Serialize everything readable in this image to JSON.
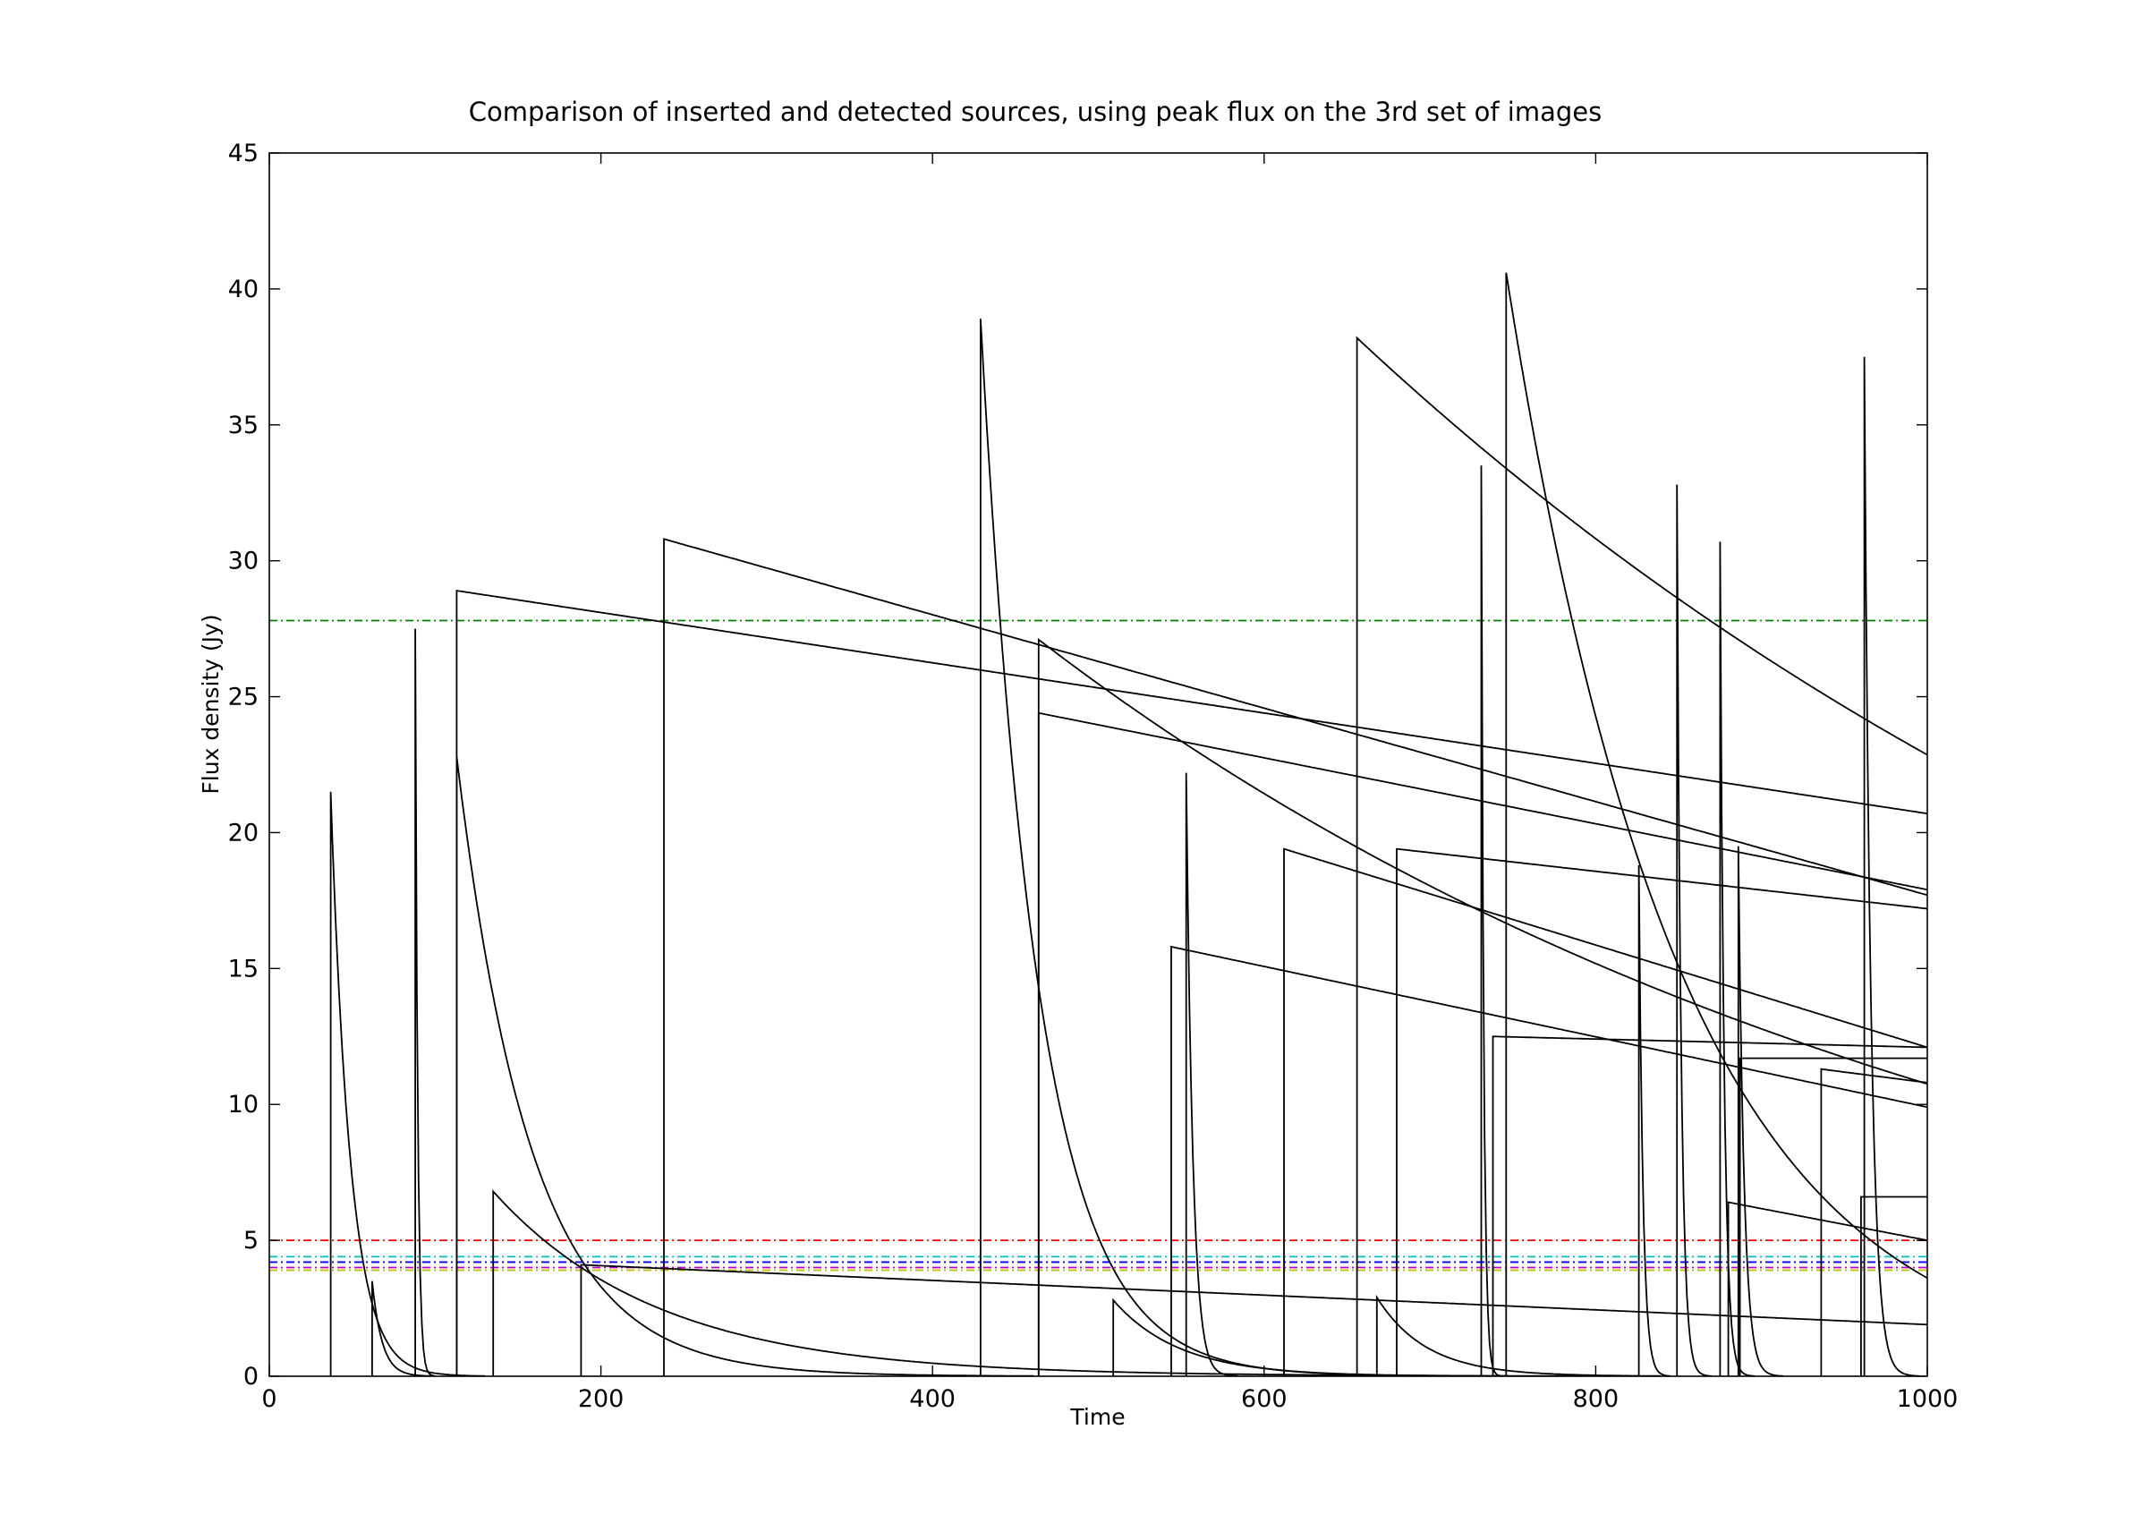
{
  "chart_data": {
    "type": "line",
    "title": "Comparison of inserted and detected sources, using peak flux on the 3rd set of images",
    "xlabel": "Time",
    "ylabel": "Flux density (Jy)",
    "xlim": [
      0,
      1000
    ],
    "ylim": [
      0,
      45
    ],
    "xticks": [
      "0",
      "200",
      "400",
      "600",
      "800",
      "1000"
    ],
    "yticks": [
      "0",
      "5",
      "10",
      "15",
      "20",
      "25",
      "30",
      "35",
      "40",
      "45"
    ],
    "grid": false,
    "legend": "none",
    "colors": {
      "inserted": "#000000",
      "axes": "#000000",
      "background": "#ffffff"
    },
    "inserted_sources": [
      {
        "t0": 37,
        "peak": 21.5,
        "kind": "exp",
        "tau": 12
      },
      {
        "t0": 62,
        "peak": 3.5,
        "kind": "exp",
        "tau": 6
      },
      {
        "t0": 88,
        "peak": 27.5,
        "kind": "exp",
        "tau": 1.5
      },
      {
        "t0": 113,
        "peak": 22.8,
        "kind": "exp",
        "tau": 45
      },
      {
        "t0": 113,
        "peak": 28.9,
        "kind": "linear",
        "end": 20.7
      },
      {
        "t0": 135,
        "peak": 6.8,
        "kind": "exp",
        "tau": 100
      },
      {
        "t0": 188,
        "peak": 4.1,
        "kind": "linear",
        "end": 1.9
      },
      {
        "t0": 238,
        "peak": 30.8,
        "kind": "linear",
        "end": 17.7
      },
      {
        "t0": 429,
        "peak": 38.9,
        "kind": "exp",
        "tau": 35
      },
      {
        "t0": 464,
        "peak": 27.1,
        "kind": "exp",
        "tau": 580
      },
      {
        "t0": 464,
        "peak": 24.4,
        "kind": "linear",
        "end": 17.9
      },
      {
        "t0": 509,
        "peak": 2.8,
        "kind": "exp",
        "tau": 40
      },
      {
        "t0": 544,
        "peak": 15.8,
        "kind": "linear",
        "end": 9.9
      },
      {
        "t0": 553,
        "peak": 22.2,
        "kind": "exp",
        "tau": 4
      },
      {
        "t0": 612,
        "peak": 19.4,
        "kind": "linear",
        "end": 12.1
      },
      {
        "t0": 656,
        "peak": 38.2,
        "kind": "exp",
        "tau": 670
      },
      {
        "t0": 668,
        "peak": 2.9,
        "kind": "exp",
        "tau": 30
      },
      {
        "t0": 680,
        "peak": 19.4,
        "kind": "linear",
        "end": 17.2
      },
      {
        "t0": 731,
        "peak": 33.5,
        "kind": "exp",
        "tau": 1.5
      },
      {
        "t0": 746,
        "peak": 40.6,
        "kind": "exp",
        "tau": 105
      },
      {
        "t0": 738,
        "peak": 12.5,
        "kind": "linear",
        "end": 12.1
      },
      {
        "t0": 826,
        "peak": 18.8,
        "kind": "exp",
        "tau": 2.5
      },
      {
        "t0": 849,
        "peak": 32.8,
        "kind": "exp",
        "tau": 2.5
      },
      {
        "t0": 875,
        "peak": 30.7,
        "kind": "exp",
        "tau": 2.5
      },
      {
        "t0": 880,
        "peak": 6.4,
        "kind": "linear",
        "end": 5.0
      },
      {
        "t0": 886,
        "peak": 19.5,
        "kind": "exp",
        "tau": 3.5
      },
      {
        "t0": 887,
        "peak": 11.7,
        "kind": "linear",
        "end": 11.7
      },
      {
        "t0": 936,
        "peak": 11.3,
        "kind": "linear",
        "end": 10.8
      },
      {
        "t0": 962,
        "peak": 37.5,
        "kind": "exp",
        "tau": 4
      },
      {
        "t0": 960,
        "peak": 6.6,
        "kind": "linear",
        "end": 6.6
      }
    ],
    "detected_thresholds": [
      {
        "y": 27.8,
        "color": "#008000"
      },
      {
        "y": 5.0,
        "color": "#ff0000"
      },
      {
        "y": 4.4,
        "color": "#00bfbf"
      },
      {
        "y": 4.2,
        "color": "#0000ff"
      },
      {
        "y": 4.0,
        "color": "#bf00bf"
      },
      {
        "y": 3.9,
        "color": "#bfbf00"
      }
    ]
  }
}
